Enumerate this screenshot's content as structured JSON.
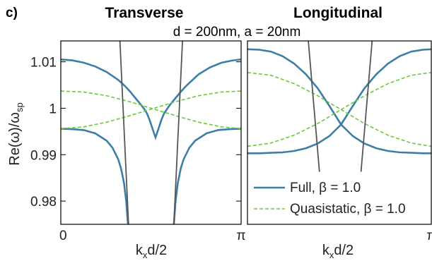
{
  "panel_letter": "c)",
  "subtitle": "d = 200nm, a = 20nm",
  "colors": {
    "full": "#3d7ea6",
    "quasistatic": "#66cc33",
    "light_line": "#555555",
    "frame": "#000000"
  },
  "chart_data": [
    {
      "type": "line",
      "title": "Transverse",
      "xlabel": "k",
      "xlabel_sub": "x",
      "xlabel_tail": "d/2",
      "ylabel": "Re(ω)/ω",
      "ylabel_sub": "sp",
      "xlim": [
        0,
        3.14159
      ],
      "ylim": [
        0.975,
        1.0145
      ],
      "xticks": [
        {
          "value": 0,
          "label": "0"
        },
        {
          "value": 3.14159,
          "label": "π"
        }
      ],
      "yticks": [
        {
          "value": 1.01,
          "label": "1.01"
        },
        {
          "value": 1.0,
          "label": "1"
        },
        {
          "value": 0.99,
          "label": "0.99"
        },
        {
          "value": 0.98,
          "label": "0.98"
        }
      ],
      "series": [
        {
          "key": "full_upper",
          "legend": "Full, β = 1.0",
          "style": "full",
          "x": [
            0,
            0.2,
            0.4,
            0.6,
            0.8,
            1.0,
            1.1,
            1.2,
            1.3,
            1.4,
            1.45,
            1.5,
            1.55,
            1.6,
            1.65,
            1.7,
            1.75,
            1.8,
            1.9,
            2.0,
            2.1,
            2.2,
            2.4,
            2.6,
            2.8,
            3.0,
            3.14159
          ],
          "y": [
            1.0105,
            1.0103,
            1.0098,
            1.009,
            1.0078,
            1.0061,
            1.005,
            1.0037,
            1.0022,
            1.0007,
            0.9999,
            0.9989,
            0.9974,
            0.9955,
            0.9937,
            0.9955,
            0.9974,
            0.9989,
            1.0007,
            1.0022,
            1.0037,
            1.005,
            1.0073,
            1.0088,
            1.0098,
            1.0103,
            1.0105
          ]
        },
        {
          "key": "full_lower_left",
          "style": "full",
          "x": [
            0,
            0.2,
            0.4,
            0.6,
            0.8,
            0.9,
            1.0,
            1.05,
            1.1,
            1.14,
            1.17
          ],
          "y": [
            0.9956,
            0.9955,
            0.9953,
            0.9946,
            0.993,
            0.9915,
            0.989,
            0.987,
            0.984,
            0.98,
            0.975
          ]
        },
        {
          "key": "full_lower_right",
          "style": "full",
          "x": [
            1.97,
            2.0,
            2.04,
            2.09,
            2.14,
            2.24,
            2.34,
            2.54,
            2.74,
            2.94,
            3.14159
          ],
          "y": [
            0.975,
            0.98,
            0.984,
            0.987,
            0.989,
            0.9915,
            0.993,
            0.9946,
            0.9953,
            0.9955,
            0.9956
          ]
        },
        {
          "key": "qs_a",
          "legend": "Quasistatic, β = 1.0",
          "style": "quasistatic",
          "x": [
            0,
            0.4,
            0.8,
            1.2,
            1.6,
            2.0,
            2.4,
            2.8,
            3.14159
          ],
          "y": [
            1.0037,
            1.0035,
            1.0027,
            1.0014,
            0.9999,
            0.9984,
            0.997,
            0.996,
            0.9956
          ]
        },
        {
          "key": "qs_b",
          "style": "quasistatic",
          "x": [
            0,
            0.4,
            0.8,
            1.2,
            1.6,
            2.0,
            2.4,
            2.8,
            3.14159
          ],
          "y": [
            0.9956,
            0.996,
            0.997,
            0.9984,
            0.9999,
            1.0014,
            1.0027,
            1.0035,
            1.0037
          ]
        },
        {
          "key": "light_left",
          "style": "light",
          "x": [
            1.03,
            1.18
          ],
          "y": [
            1.0145,
            0.975
          ]
        },
        {
          "key": "light_right",
          "style": "light",
          "x": [
            2.12,
            1.97
          ],
          "y": [
            1.0145,
            0.975
          ]
        }
      ]
    },
    {
      "type": "line",
      "title": "Longitudinal",
      "xlabel": "k",
      "xlabel_sub": "x",
      "xlabel_tail": "d/2",
      "xlim": [
        0,
        3.14159
      ],
      "ylim": [
        0.975,
        1.0145
      ],
      "xticks": [
        {
          "value": 3.14159,
          "label": "π"
        }
      ],
      "series": [
        {
          "key": "full_a",
          "style": "full",
          "x": [
            0,
            0.2,
            0.4,
            0.6,
            0.8,
            1.0,
            1.2,
            1.4,
            1.6,
            1.8,
            2.0,
            2.2,
            2.4,
            2.6,
            2.8,
            3.0,
            3.14159
          ],
          "y": [
            1.0127,
            1.0126,
            1.0122,
            1.0112,
            1.0096,
            1.0073,
            1.0043,
            1.0005,
            0.9965,
            0.994,
            0.9924,
            0.9914,
            0.9908,
            0.9905,
            0.9904,
            0.9903,
            0.9903
          ]
        },
        {
          "key": "full_b",
          "style": "full",
          "x": [
            0,
            0.2,
            0.4,
            0.6,
            0.8,
            1.0,
            1.2,
            1.4,
            1.6,
            1.8,
            2.0,
            2.2,
            2.4,
            2.6,
            2.8,
            3.0,
            3.14159
          ],
          "y": [
            0.9903,
            0.9903,
            0.9904,
            0.9905,
            0.9908,
            0.9914,
            0.9924,
            0.994,
            0.9965,
            1.0005,
            1.0043,
            1.0073,
            1.0096,
            1.0112,
            1.0122,
            1.0126,
            1.0127
          ]
        },
        {
          "key": "qs_a",
          "style": "quasistatic",
          "x": [
            0,
            0.4,
            0.8,
            1.2,
            1.6,
            2.0,
            2.4,
            2.8,
            3.14159
          ],
          "y": [
            1.0077,
            1.0071,
            1.0053,
            1.0027,
            0.9997,
            0.9967,
            0.9942,
            0.9925,
            0.9918
          ]
        },
        {
          "key": "qs_b",
          "style": "quasistatic",
          "x": [
            0,
            0.4,
            0.8,
            1.2,
            1.6,
            2.0,
            2.4,
            2.8,
            3.14159
          ],
          "y": [
            0.9918,
            0.9925,
            0.9942,
            0.9967,
            0.9997,
            1.0027,
            1.0053,
            1.0071,
            1.0077
          ]
        },
        {
          "key": "light_left",
          "style": "light",
          "x": [
            1.04,
            1.23
          ],
          "y": [
            1.0145,
            0.9863
          ]
        },
        {
          "key": "light_right",
          "style": "light",
          "x": [
            2.13,
            1.94
          ],
          "y": [
            1.0145,
            0.9863
          ]
        }
      ],
      "legend": {
        "position": "bottom-right",
        "entries": [
          {
            "label": "Full, β = 1.0",
            "style": "full"
          },
          {
            "label": "Quasistatic, β = 1.0",
            "style": "quasistatic"
          }
        ]
      }
    }
  ]
}
